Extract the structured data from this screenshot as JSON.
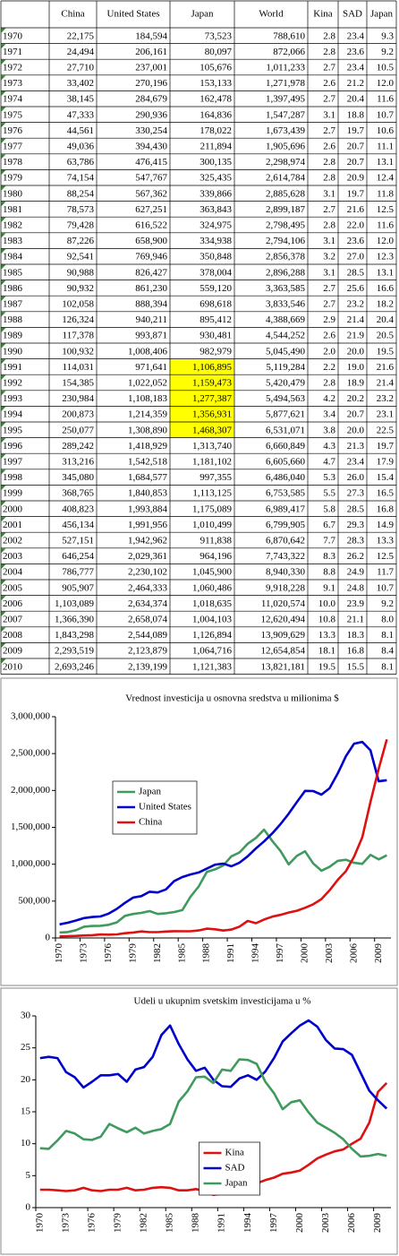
{
  "table": {
    "header": [
      "China",
      "United States",
      "Japan",
      "World",
      "Kina",
      "SAD",
      "Japan"
    ],
    "highlight_color": "#ffff00",
    "highlighted_cells": [
      [
        21,
        3
      ],
      [
        22,
        3
      ],
      [
        23,
        3
      ],
      [
        24,
        3
      ],
      [
        25,
        3
      ]
    ],
    "rows": [
      [
        "1970",
        "22,175",
        "184,594",
        "73,523",
        "788,610",
        "2.8",
        "23.4",
        "9.3"
      ],
      [
        "1971",
        "24,494",
        "206,161",
        "80,097",
        "872,066",
        "2.8",
        "23.6",
        "9.2"
      ],
      [
        "1972",
        "27,710",
        "237,001",
        "105,676",
        "1,011,233",
        "2.7",
        "23.4",
        "10.5"
      ],
      [
        "1973",
        "33,402",
        "270,196",
        "153,133",
        "1,271,978",
        "2.6",
        "21.2",
        "12.0"
      ],
      [
        "1974",
        "38,145",
        "284,679",
        "162,478",
        "1,397,495",
        "2.7",
        "20.4",
        "11.6"
      ],
      [
        "1975",
        "47,333",
        "290,936",
        "164,836",
        "1,547,287",
        "3.1",
        "18.8",
        "10.7"
      ],
      [
        "1976",
        "44,561",
        "330,254",
        "178,022",
        "1,673,439",
        "2.7",
        "19.7",
        "10.6"
      ],
      [
        "1977",
        "49,036",
        "394,430",
        "211,894",
        "1,905,696",
        "2.6",
        "20.7",
        "11.1"
      ],
      [
        "1978",
        "63,786",
        "476,415",
        "300,135",
        "2,298,974",
        "2.8",
        "20.7",
        "13.1"
      ],
      [
        "1979",
        "74,154",
        "547,767",
        "325,435",
        "2,614,784",
        "2.8",
        "20.9",
        "12.4"
      ],
      [
        "1980",
        "88,254",
        "567,362",
        "339,866",
        "2,885,628",
        "3.1",
        "19.7",
        "11.8"
      ],
      [
        "1981",
        "78,573",
        "627,251",
        "363,843",
        "2,899,187",
        "2.7",
        "21.6",
        "12.5"
      ],
      [
        "1982",
        "79,428",
        "616,522",
        "324,975",
        "2,798,495",
        "2.8",
        "22.0",
        "11.6"
      ],
      [
        "1983",
        "87,226",
        "658,900",
        "334,938",
        "2,794,106",
        "3.1",
        "23.6",
        "12.0"
      ],
      [
        "1984",
        "92,541",
        "769,946",
        "350,848",
        "2,856,378",
        "3.2",
        "27.0",
        "12.3"
      ],
      [
        "1985",
        "90,988",
        "826,427",
        "378,004",
        "2,896,288",
        "3.1",
        "28.5",
        "13.1"
      ],
      [
        "1986",
        "90,932",
        "861,230",
        "559,120",
        "3,363,585",
        "2.7",
        "25.6",
        "16.6"
      ],
      [
        "1987",
        "102,058",
        "888,394",
        "698,618",
        "3,833,546",
        "2.7",
        "23.2",
        "18.2"
      ],
      [
        "1988",
        "126,324",
        "940,211",
        "895,412",
        "4,388,669",
        "2.9",
        "21.4",
        "20.4"
      ],
      [
        "1989",
        "117,378",
        "993,871",
        "930,481",
        "4,544,252",
        "2.6",
        "21.9",
        "20.5"
      ],
      [
        "1990",
        "100,932",
        "1,008,406",
        "982,979",
        "5,045,490",
        "2.0",
        "20.0",
        "19.5"
      ],
      [
        "1991",
        "114,031",
        "971,641",
        "1,106,895",
        "5,119,284",
        "2.2",
        "19.0",
        "21.6"
      ],
      [
        "1992",
        "154,385",
        "1,022,052",
        "1,159,473",
        "5,420,479",
        "2.8",
        "18.9",
        "21.4"
      ],
      [
        "1993",
        "230,984",
        "1,108,183",
        "1,277,387",
        "5,494,563",
        "4.2",
        "20.2",
        "23.2"
      ],
      [
        "1994",
        "200,873",
        "1,214,359",
        "1,356,931",
        "5,877,621",
        "3.4",
        "20.7",
        "23.1"
      ],
      [
        "1995",
        "250,077",
        "1,308,890",
        "1,468,307",
        "6,531,071",
        "3.8",
        "20.0",
        "22.5"
      ],
      [
        "1996",
        "289,242",
        "1,418,929",
        "1,313,740",
        "6,660,849",
        "4.3",
        "21.3",
        "19.7"
      ],
      [
        "1997",
        "313,216",
        "1,542,518",
        "1,181,102",
        "6,605,660",
        "4.7",
        "23.4",
        "17.9"
      ],
      [
        "1998",
        "345,080",
        "1,684,577",
        "997,355",
        "6,486,040",
        "5.3",
        "26.0",
        "15.4"
      ],
      [
        "1999",
        "368,765",
        "1,840,853",
        "1,113,125",
        "6,753,585",
        "5.5",
        "27.3",
        "16.5"
      ],
      [
        "2000",
        "408,823",
        "1,993,884",
        "1,175,089",
        "6,989,417",
        "5.8",
        "28.5",
        "16.8"
      ],
      [
        "2001",
        "456,134",
        "1,991,956",
        "1,010,499",
        "6,799,905",
        "6.7",
        "29.3",
        "14.9"
      ],
      [
        "2002",
        "527,151",
        "1,942,962",
        "911,838",
        "6,870,642",
        "7.7",
        "28.3",
        "13.3"
      ],
      [
        "2003",
        "646,254",
        "2,029,361",
        "964,196",
        "7,743,322",
        "8.3",
        "26.2",
        "12.5"
      ],
      [
        "2004",
        "786,777",
        "2,230,102",
        "1,045,900",
        "8,940,330",
        "8.8",
        "24.9",
        "11.7"
      ],
      [
        "2005",
        "905,907",
        "2,464,333",
        "1,060,486",
        "9,918,228",
        "9.1",
        "24.8",
        "10.7"
      ],
      [
        "2006",
        "1,103,089",
        "2,634,374",
        "1,018,635",
        "11,020,574",
        "10.0",
        "23.9",
        "9.2"
      ],
      [
        "2007",
        "1,366,390",
        "2,658,074",
        "1,004,103",
        "12,620,494",
        "10.8",
        "21.1",
        "8.0"
      ],
      [
        "2008",
        "1,843,298",
        "2,544,089",
        "1,126,894",
        "13,909,629",
        "13.3",
        "18.3",
        "8.1"
      ],
      [
        "2009",
        "2,293,519",
        "2,123,879",
        "1,064,716",
        "12,654,854",
        "18.1",
        "16.8",
        "8.4"
      ],
      [
        "2010",
        "2,693,246",
        "2,139,199",
        "1,121,383",
        "13,821,181",
        "19.5",
        "15.5",
        "8.1"
      ]
    ]
  },
  "chart_data": [
    {
      "type": "line",
      "title": "Vrednost investicija u osnovna sredstva u milionima $",
      "categories": [
        "1970",
        null,
        null,
        "1973",
        null,
        null,
        "1976",
        null,
        null,
        "1979",
        null,
        null,
        "1982",
        null,
        null,
        "1985",
        null,
        null,
        "1988",
        null,
        null,
        "1991",
        null,
        null,
        "1994",
        null,
        null,
        "1997",
        null,
        null,
        "2000",
        null,
        null,
        "2003",
        null,
        null,
        "2006",
        null,
        null,
        "2009",
        null
      ],
      "ylim": [
        0,
        3000000
      ],
      "yticks": [
        0,
        {
          "value": 500000,
          "label": "500,000"
        },
        {
          "value": 1000000,
          "label": "1,000,000"
        },
        {
          "value": 1500000,
          "label": "1,500,000"
        },
        {
          "value": 2000000,
          "label": "2,000,000"
        },
        {
          "value": 2500000,
          "label": "2,500,000"
        },
        {
          "value": 3000000,
          "label": "3,000,000"
        }
      ],
      "legend": "upper left",
      "series": [
        {
          "name": "Japan",
          "color": "#3f9a5e",
          "values": [
            73523,
            80097,
            105676,
            153133,
            162478,
            164836,
            178022,
            211894,
            300135,
            325435,
            339866,
            363843,
            324975,
            334938,
            350848,
            378004,
            559120,
            698618,
            895412,
            930481,
            982979,
            1106895,
            1159473,
            1277387,
            1356931,
            1468307,
            1313740,
            1181102,
            997355,
            1113125,
            1175089,
            1010499,
            911838,
            964196,
            1045900,
            1060486,
            1018635,
            1004103,
            1126894,
            1064716,
            1121383
          ]
        },
        {
          "name": "United States",
          "color": "#0000cc",
          "values": [
            184594,
            206161,
            237001,
            270196,
            284679,
            290936,
            330254,
            394430,
            476415,
            547767,
            567362,
            627251,
            616522,
            658900,
            769946,
            826427,
            861230,
            888394,
            940211,
            993871,
            1008406,
            971641,
            1022052,
            1108183,
            1214359,
            1308890,
            1418929,
            1542518,
            1684577,
            1840853,
            1993884,
            1991956,
            1942962,
            2029361,
            2230102,
            2464333,
            2634374,
            2658074,
            2544089,
            2123879,
            2139199
          ]
        },
        {
          "name": "China",
          "color": "#dd1111",
          "values": [
            22175,
            24494,
            27710,
            33402,
            38145,
            47333,
            44561,
            49036,
            63786,
            74154,
            88254,
            78573,
            79428,
            87226,
            92541,
            90988,
            90932,
            102058,
            126324,
            117378,
            100932,
            114031,
            154385,
            230984,
            200873,
            250077,
            289242,
            313216,
            345080,
            368765,
            408823,
            456134,
            527151,
            646254,
            786777,
            905907,
            1103089,
            1366390,
            1843298,
            2293519,
            2693246
          ]
        }
      ]
    },
    {
      "type": "line",
      "title": "Udeli u ukupnim svetskim investicijama u %",
      "categories": [
        "1970",
        null,
        null,
        "1973",
        null,
        null,
        "1976",
        null,
        null,
        "1979",
        null,
        null,
        "1982",
        null,
        null,
        "1985",
        null,
        null,
        "1988",
        null,
        null,
        "1991",
        null,
        null,
        "1994",
        null,
        null,
        "1997",
        null,
        null,
        "2000",
        null,
        null,
        "2003",
        null,
        null,
        "2006",
        null,
        null,
        "2009",
        null
      ],
      "ylim": [
        0,
        30
      ],
      "yticks": [
        0,
        5,
        10,
        15,
        20,
        25,
        30
      ],
      "legend": "lower center",
      "series": [
        {
          "name": "Kina",
          "color": "#dd1111",
          "values": [
            2.8,
            2.8,
            2.7,
            2.6,
            2.7,
            3.1,
            2.7,
            2.6,
            2.8,
            2.8,
            3.1,
            2.7,
            2.8,
            3.1,
            3.2,
            3.1,
            2.7,
            2.7,
            2.9,
            2.6,
            2.0,
            2.2,
            2.8,
            4.2,
            3.4,
            3.8,
            4.3,
            4.7,
            5.3,
            5.5,
            5.8,
            6.7,
            7.7,
            8.3,
            8.8,
            9.1,
            10.0,
            10.8,
            13.3,
            18.1,
            19.5
          ]
        },
        {
          "name": "SAD",
          "color": "#0000cc",
          "values": [
            23.4,
            23.6,
            23.4,
            21.2,
            20.4,
            18.8,
            19.7,
            20.7,
            20.7,
            20.9,
            19.7,
            21.6,
            22.0,
            23.6,
            27.0,
            28.5,
            25.6,
            23.2,
            21.4,
            21.9,
            20.0,
            19.0,
            18.9,
            20.2,
            20.7,
            20.0,
            21.3,
            23.4,
            26.0,
            27.3,
            28.5,
            29.3,
            28.3,
            26.2,
            24.9,
            24.8,
            23.9,
            21.1,
            18.3,
            16.8,
            15.5
          ]
        },
        {
          "name": "Japan",
          "color": "#3f9a5e",
          "values": [
            9.3,
            9.2,
            10.5,
            12.0,
            11.6,
            10.7,
            10.6,
            11.1,
            13.1,
            12.4,
            11.8,
            12.5,
            11.6,
            12.0,
            12.3,
            13.1,
            16.6,
            18.2,
            20.4,
            20.5,
            19.5,
            21.6,
            21.4,
            23.2,
            23.1,
            22.5,
            19.7,
            17.9,
            15.4,
            16.5,
            16.8,
            14.9,
            13.3,
            12.5,
            11.7,
            10.7,
            9.2,
            8.0,
            8.1,
            8.4,
            8.1
          ]
        }
      ]
    }
  ]
}
